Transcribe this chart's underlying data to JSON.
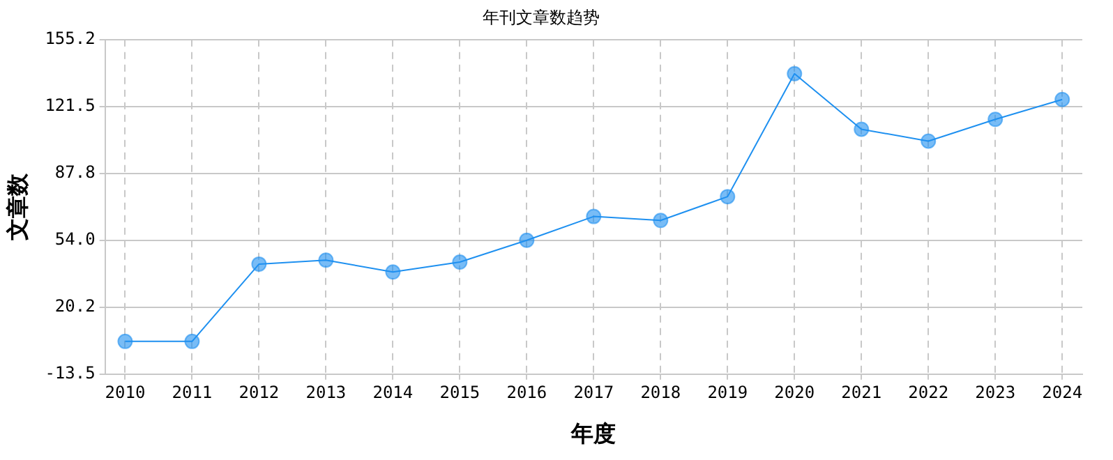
{
  "chart_data": {
    "type": "line",
    "title": "年刊文章数趋势",
    "xlabel": "年度",
    "ylabel": "文章数",
    "x": [
      2010,
      2011,
      2012,
      2013,
      2014,
      2015,
      2016,
      2017,
      2018,
      2019,
      2020,
      2021,
      2022,
      2023,
      2024
    ],
    "series": [
      {
        "color": "#1e90f0",
        "values": [
          3,
          3,
          42,
          44,
          38,
          43,
          54,
          66,
          64,
          76,
          138,
          110,
          104,
          115,
          125
        ]
      }
    ],
    "xlim": [
      2009.7,
      2024.3
    ],
    "xticks": [
      2010,
      2011,
      2012,
      2013,
      2014,
      2015,
      2016,
      2017,
      2018,
      2019,
      2020,
      2021,
      2022,
      2023,
      2024
    ],
    "ylim": [
      -13.5,
      155.2
    ],
    "yticks": [
      -13.5,
      20.2,
      {
        "value": 54,
        "label": "54.0"
      },
      87.8,
      121.5,
      155.2
    ],
    "grid": true,
    "marker": "circle",
    "line_style": "solid"
  }
}
